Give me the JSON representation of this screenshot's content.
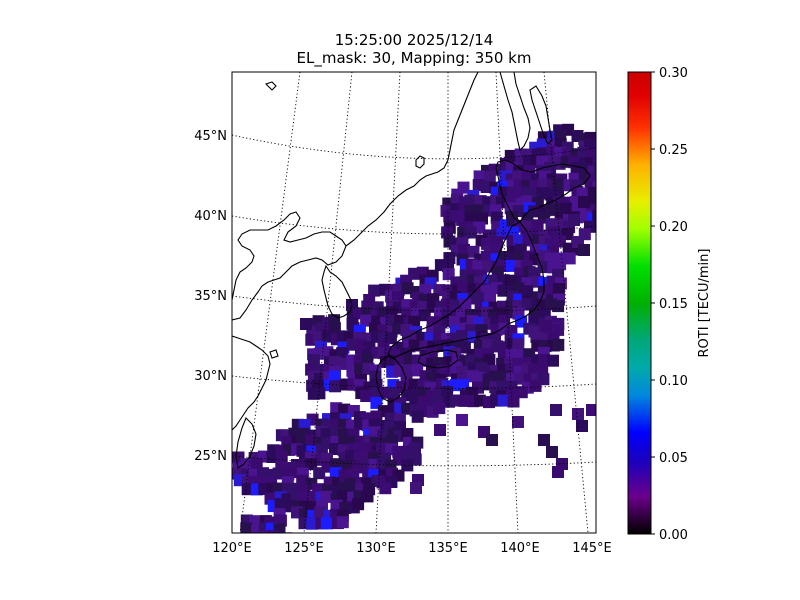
{
  "title": {
    "line1": "15:25:00 2025/12/14",
    "line2": "EL_mask: 30, Mapping: 350 km"
  },
  "map": {
    "lon_range": [
      120,
      145
    ],
    "lat_range": [
      20,
      49
    ],
    "lon_ticks": [
      "120°E",
      "125°E",
      "130°E",
      "135°E",
      "140°E",
      "145°E"
    ],
    "lat_ticks": [
      "25°N",
      "30°N",
      "35°N",
      "40°N",
      "45°N"
    ],
    "graticule_style": "dotted",
    "coastlines": true
  },
  "colorbar": {
    "label": "ROTI [TECU/min]",
    "ticks": [
      "0.00",
      "0.05",
      "0.10",
      "0.15",
      "0.20",
      "0.25",
      "0.30"
    ],
    "min": 0.0,
    "max": 0.3,
    "colormap": "nipy_spectral"
  },
  "chart_data": {
    "type": "heatmap",
    "title": "15:25:00 2025/12/14 EL_mask: 30, Mapping: 350 km",
    "colorbar_label": "ROTI [TECU/min]",
    "value_range": [
      0.0,
      0.3
    ],
    "typical_roti": 0.03,
    "max_roti_observed": 0.06,
    "coverage_note": "Japan archipelago, Ryukyu Islands and Taiwan region",
    "colors": {
      "dominant": "#3a0a6e",
      "high": "#1a1aff",
      "low": "#1a0030"
    }
  }
}
